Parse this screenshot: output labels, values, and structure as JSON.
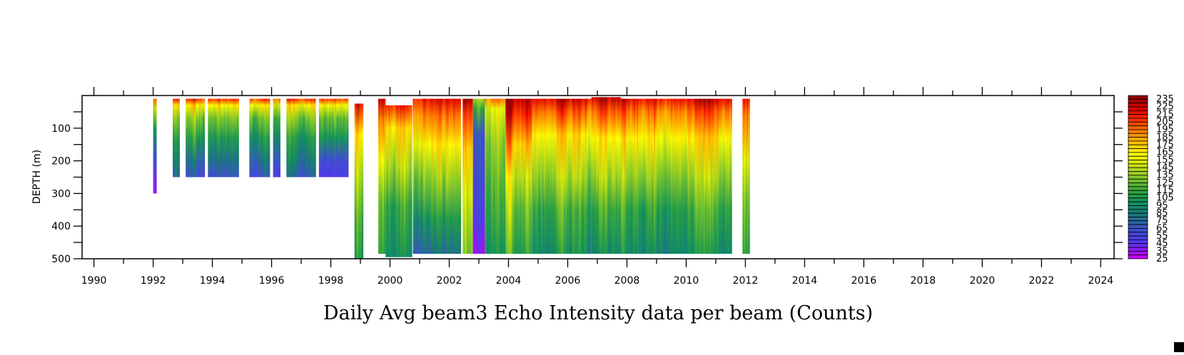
{
  "chart_data": {
    "type": "heatmap",
    "title": "Daily Avg beam3 Echo Intensity data per beam (Counts)",
    "xlabel": "",
    "ylabel": "DEPTH (m)",
    "xlim": [
      1989.6,
      2024.45
    ],
    "ylim": [
      0,
      500
    ],
    "y_inverted": true,
    "x_ticks": [
      1990,
      1992,
      1994,
      1996,
      1998,
      2000,
      2002,
      2004,
      2006,
      2008,
      2010,
      2012,
      2014,
      2016,
      2018,
      2020,
      2022,
      2024
    ],
    "y_ticks": [
      100,
      200,
      300,
      400,
      500
    ],
    "colorbar": {
      "min": 25,
      "max": 235,
      "step": 5,
      "labels": [
        235,
        225,
        215,
        205,
        195,
        185,
        175,
        165,
        155,
        145,
        135,
        125,
        115,
        105,
        95,
        85,
        75,
        65,
        55,
        45,
        35,
        25
      ],
      "color_stops": [
        [
          25,
          "#c000ff"
        ],
        [
          45,
          "#5038f0"
        ],
        [
          65,
          "#3858c0"
        ],
        [
          80,
          "#1a7878"
        ],
        [
          95,
          "#0e9060"
        ],
        [
          110,
          "#2ea040"
        ],
        [
          125,
          "#70c030"
        ],
        [
          145,
          "#c8e010"
        ],
        [
          160,
          "#ffff00"
        ],
        [
          175,
          "#ffc000"
        ],
        [
          190,
          "#ff8000"
        ],
        [
          205,
          "#ff3000"
        ],
        [
          220,
          "#e00000"
        ],
        [
          235,
          "#900000"
        ]
      ]
    },
    "segments": [
      {
        "start": 1992.0,
        "end": 1992.12,
        "top": 10,
        "bottom": 300,
        "profile": [
          [
            10,
            200
          ],
          [
            40,
            150
          ],
          [
            100,
            110
          ],
          [
            180,
            70
          ],
          [
            300,
            40
          ]
        ]
      },
      {
        "start": 1992.66,
        "end": 1992.9,
        "top": 10,
        "bottom": 250,
        "profile": [
          [
            10,
            205
          ],
          [
            30,
            160
          ],
          [
            70,
            125
          ],
          [
            130,
            100
          ],
          [
            200,
            80
          ],
          [
            250,
            65
          ]
        ]
      },
      {
        "start": 1993.1,
        "end": 1993.75,
        "top": 10,
        "bottom": 250,
        "profile": [
          [
            10,
            205
          ],
          [
            30,
            160
          ],
          [
            70,
            125
          ],
          [
            130,
            100
          ],
          [
            200,
            70
          ],
          [
            250,
            55
          ]
        ]
      },
      {
        "start": 1993.85,
        "end": 1994.9,
        "top": 10,
        "bottom": 250,
        "profile": [
          [
            10,
            205
          ],
          [
            30,
            160
          ],
          [
            70,
            125
          ],
          [
            130,
            100
          ],
          [
            200,
            75
          ],
          [
            250,
            60
          ]
        ]
      },
      {
        "start": 1995.25,
        "end": 1995.95,
        "top": 10,
        "bottom": 250,
        "profile": [
          [
            10,
            205
          ],
          [
            30,
            160
          ],
          [
            70,
            125
          ],
          [
            130,
            100
          ],
          [
            200,
            75
          ],
          [
            250,
            60
          ]
        ]
      },
      {
        "start": 1996.05,
        "end": 1996.3,
        "top": 10,
        "bottom": 250,
        "profile": [
          [
            10,
            205
          ],
          [
            30,
            160
          ],
          [
            70,
            125
          ],
          [
            130,
            100
          ],
          [
            200,
            75
          ],
          [
            250,
            60
          ]
        ]
      },
      {
        "start": 1996.5,
        "end": 1997.5,
        "top": 10,
        "bottom": 250,
        "profile": [
          [
            10,
            205
          ],
          [
            30,
            160
          ],
          [
            70,
            125
          ],
          [
            130,
            100
          ],
          [
            200,
            80
          ],
          [
            250,
            65
          ]
        ]
      },
      {
        "start": 1997.6,
        "end": 1998.6,
        "top": 10,
        "bottom": 250,
        "profile": [
          [
            10,
            205
          ],
          [
            30,
            160
          ],
          [
            70,
            125
          ],
          [
            130,
            100
          ],
          [
            200,
            60
          ],
          [
            250,
            50
          ]
        ]
      },
      {
        "start": 1998.8,
        "end": 1999.1,
        "top": 25,
        "bottom": 500,
        "profile": [
          [
            25,
            220
          ],
          [
            120,
            170
          ],
          [
            250,
            140
          ],
          [
            380,
            120
          ],
          [
            500,
            105
          ]
        ]
      },
      {
        "start": 1999.6,
        "end": 1999.85,
        "top": 10,
        "bottom": 485,
        "profile": [
          [
            10,
            220
          ],
          [
            80,
            185
          ],
          [
            200,
            150
          ],
          [
            330,
            120
          ],
          [
            485,
            110
          ]
        ]
      },
      {
        "start": 1999.85,
        "end": 2000.75,
        "top": 30,
        "bottom": 495,
        "profile": [
          [
            30,
            215
          ],
          [
            100,
            175
          ],
          [
            220,
            145
          ],
          [
            340,
            115
          ],
          [
            495,
            100
          ]
        ]
      },
      {
        "start": 2000.77,
        "end": 2002.4,
        "top": 10,
        "bottom": 485,
        "profile": [
          [
            10,
            215
          ],
          [
            60,
            190
          ],
          [
            150,
            160
          ],
          [
            260,
            130
          ],
          [
            380,
            100
          ],
          [
            485,
            75
          ]
        ]
      },
      {
        "start": 2002.45,
        "end": 2002.8,
        "top": 10,
        "bottom": 485,
        "profile": [
          [
            10,
            220
          ],
          [
            60,
            195
          ],
          [
            160,
            165
          ],
          [
            300,
            140
          ],
          [
            485,
            120
          ]
        ]
      },
      {
        "start": 2002.8,
        "end": 2003.2,
        "top": 10,
        "bottom": 485,
        "profile": [
          [
            10,
            130
          ],
          [
            40,
            105
          ],
          [
            120,
            55
          ],
          [
            300,
            45
          ],
          [
            400,
            35
          ],
          [
            485,
            25
          ]
        ]
      },
      {
        "start": 2003.2,
        "end": 2003.9,
        "top": 10,
        "bottom": 485,
        "profile": [
          [
            10,
            190
          ],
          [
            40,
            150
          ],
          [
            150,
            130
          ],
          [
            300,
            115
          ],
          [
            485,
            95
          ]
        ]
      },
      {
        "start": 2003.9,
        "end": 2004.8,
        "top": 10,
        "bottom": 485,
        "profile": [
          [
            10,
            235
          ],
          [
            60,
            215
          ],
          [
            150,
            180
          ],
          [
            250,
            150
          ],
          [
            350,
            130
          ],
          [
            485,
            115
          ]
        ]
      },
      {
        "start": 2004.8,
        "end": 2006.8,
        "top": 10,
        "bottom": 485,
        "profile": [
          [
            10,
            220
          ],
          [
            50,
            195
          ],
          [
            120,
            165
          ],
          [
            250,
            135
          ],
          [
            350,
            112
          ],
          [
            485,
            95
          ]
        ]
      },
      {
        "start": 2006.8,
        "end": 2007.8,
        "top": 5,
        "bottom": 485,
        "profile": [
          [
            5,
            225
          ],
          [
            50,
            195
          ],
          [
            130,
            160
          ],
          [
            250,
            135
          ],
          [
            350,
            110
          ],
          [
            485,
            90
          ]
        ]
      },
      {
        "start": 2007.8,
        "end": 2011.55,
        "top": 10,
        "bottom": 485,
        "profile": [
          [
            10,
            220
          ],
          [
            50,
            195
          ],
          [
            130,
            165
          ],
          [
            250,
            135
          ],
          [
            350,
            112
          ],
          [
            485,
            95
          ]
        ]
      },
      {
        "start": 2011.9,
        "end": 2012.15,
        "top": 10,
        "bottom": 485,
        "profile": [
          [
            10,
            215
          ],
          [
            60,
            190
          ],
          [
            200,
            150
          ],
          [
            320,
            125
          ],
          [
            485,
            110
          ]
        ]
      }
    ]
  }
}
